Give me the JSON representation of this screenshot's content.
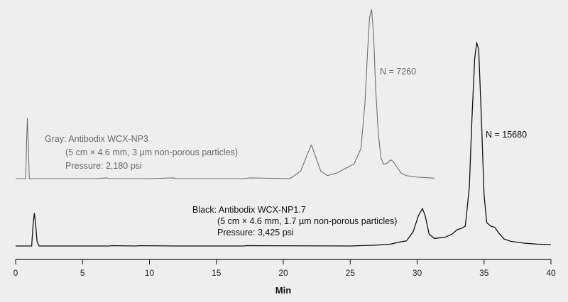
{
  "chart_data": {
    "type": "line",
    "xlabel": "Min",
    "xlim": [
      0,
      40
    ],
    "xticks": [
      0,
      5,
      10,
      15,
      20,
      25,
      30,
      35,
      40
    ],
    "yaxis_visible": false,
    "grid": false,
    "colors": {
      "background": "#eeeeee",
      "gray": "#6e6e6e",
      "black": "#111111"
    },
    "series": [
      {
        "id": "gray",
        "color": "#6e6e6e",
        "x": [
          0,
          0.75,
          0.82,
          0.88,
          0.94,
          1.02,
          1.1,
          6,
          6.8,
          7.0,
          10,
          11.8,
          12,
          17,
          17.5,
          20.5,
          21.3,
          21.8,
          22.1,
          22.4,
          22.8,
          23.3,
          24.0,
          24.8,
          25.3,
          25.8,
          26.1,
          26.3,
          26.45,
          26.6,
          26.75,
          26.9,
          27.1,
          27.3,
          27.5,
          27.8,
          28.0,
          28.2,
          28.5,
          28.8,
          29.2,
          30.0,
          31.0,
          31.3
        ],
        "y": [
          0,
          0,
          10,
          16,
          10,
          0,
          0,
          0,
          0.2,
          0,
          0,
          0.2,
          0,
          0,
          0.2,
          0,
          2.0,
          6.5,
          9.0,
          6.0,
          2.0,
          0.8,
          1.5,
          3.0,
          4.0,
          8.0,
          20.0,
          34.0,
          43.0,
          45.0,
          38.0,
          24.0,
          12.0,
          5.5,
          3.8,
          4.2,
          5.0,
          4.6,
          3.0,
          1.5,
          0.8,
          0.4,
          0.2,
          0.1
        ]
      },
      {
        "id": "black",
        "color": "#111111",
        "x": [
          0,
          1.2,
          1.3,
          1.4,
          1.5,
          1.6,
          1.75,
          7,
          7.2,
          9,
          9.2,
          12,
          17,
          17.3,
          25,
          26,
          27,
          28.0,
          28.8,
          29.2,
          29.7,
          30.1,
          30.4,
          30.6,
          30.9,
          31.3,
          31.7,
          32.1,
          32.6,
          33.0,
          33.3,
          33.6,
          33.9,
          34.1,
          34.3,
          34.45,
          34.6,
          34.8,
          35.0,
          35.2,
          35.5,
          35.8,
          36.1,
          36.5,
          37.0,
          38.0,
          39.0,
          40.0
        ],
        "y": [
          0,
          0,
          9,
          14,
          9,
          2,
          0,
          0,
          0.15,
          0,
          0.15,
          0,
          0,
          0.15,
          0,
          0.2,
          0.4,
          0.8,
          1.8,
          2.2,
          6.0,
          13.0,
          16.0,
          13.0,
          5.0,
          3.2,
          3.5,
          3.8,
          5.0,
          7.0,
          7.5,
          8.5,
          25.0,
          55.0,
          80.0,
          87.0,
          84.0,
          55.0,
          22.0,
          10.0,
          8.5,
          8.0,
          5.5,
          3.0,
          2.0,
          1.2,
          0.8,
          0.6
        ]
      }
    ],
    "annotations": {
      "gray_label": [
        "Gray:  Antibodix WCX-NP3",
        "(5 cm × 4.6 mm, 3 µm non-porous particles)",
        "Pressure: 2,180 psi"
      ],
      "black_label": [
        "Black: Antibodix WCX-NP1.7",
        "(5 cm × 4.6 mm, 1.7 µm non-porous particles)",
        "Pressure: 3,425 psi"
      ],
      "gray_peak": "N = 7260",
      "black_peak": "N = 15680"
    }
  }
}
